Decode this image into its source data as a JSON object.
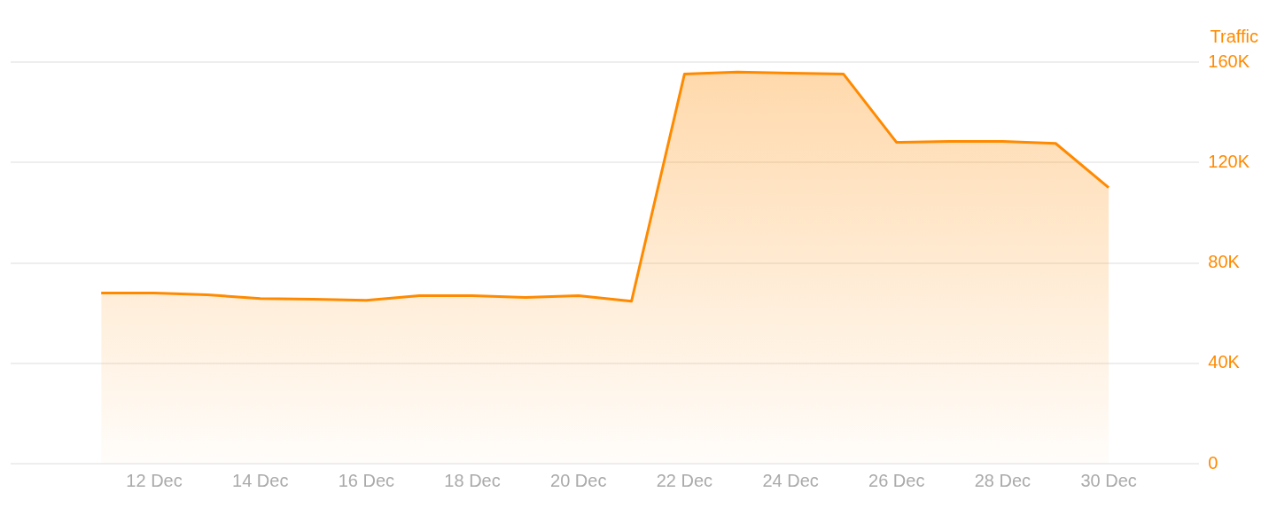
{
  "chart_data": {
    "type": "area",
    "ylabel": "Traffic",
    "x": [
      "--12-11",
      "--12-12",
      "--12-13",
      "--12-14",
      "--12-15",
      "--12-16",
      "--12-17",
      "--12-18",
      "--12-19",
      "--12-20",
      "--12-21",
      "--12-22",
      "--12-23",
      "--12-24",
      "--12-25",
      "--12-26",
      "--12-27",
      "--12-28",
      "--12-29",
      "--12-30"
    ],
    "series": [
      {
        "color": "#ff8a00",
        "values": [
          68000,
          68000,
          67300,
          65800,
          65500,
          65100,
          66900,
          66900,
          66200,
          66900,
          64700,
          155200,
          156000,
          155600,
          155200,
          128000,
          128400,
          128400,
          127600,
          110000
        ]
      }
    ],
    "xlim": [
      "--12-09T07:00",
      "--12-31T17:00"
    ],
    "xticks": [
      {
        "value": "--12-12",
        "label": "12 Dec"
      },
      {
        "value": "--12-14",
        "label": "14 Dec"
      },
      {
        "value": "--12-16",
        "label": "16 Dec"
      },
      {
        "value": "--12-18",
        "label": "18 Dec"
      },
      {
        "value": "--12-20",
        "label": "20 Dec"
      },
      {
        "value": "--12-22",
        "label": "22 Dec"
      },
      {
        "value": "--12-24",
        "label": "24 Dec"
      },
      {
        "value": "--12-26",
        "label": "26 Dec"
      },
      {
        "value": "--12-28",
        "label": "28 Dec"
      },
      {
        "value": "--12-30",
        "label": "30 Dec"
      }
    ],
    "ylim": [
      0,
      160000
    ],
    "yticks": [
      0,
      {
        "value": 40000,
        "label": "40K"
      },
      {
        "value": 80000,
        "label": "80K"
      },
      {
        "value": 120000,
        "label": "120K"
      },
      {
        "value": 160000,
        "label": "160K"
      }
    ],
    "grid": "y",
    "legend": false
  }
}
